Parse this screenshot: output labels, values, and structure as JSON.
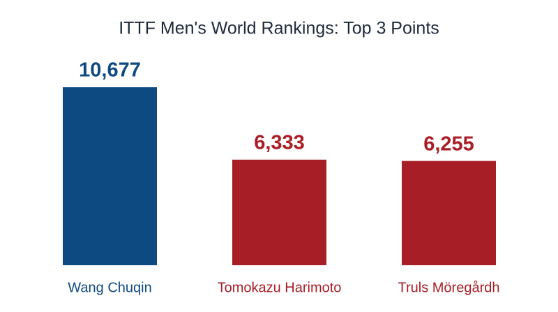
{
  "chart_data": {
    "type": "bar",
    "title": "ITTF Men's World Rankings: Top 3 Points",
    "categories": [
      "Wang Chuqin",
      "Tomokazu Harimoto",
      "Truls Möregårdh"
    ],
    "values": [
      10677,
      6333,
      6255
    ],
    "value_labels": [
      "10,677",
      "6,333",
      "6,255"
    ],
    "colors": [
      "#0e4a82",
      "#a81e26",
      "#a81e26"
    ]
  }
}
